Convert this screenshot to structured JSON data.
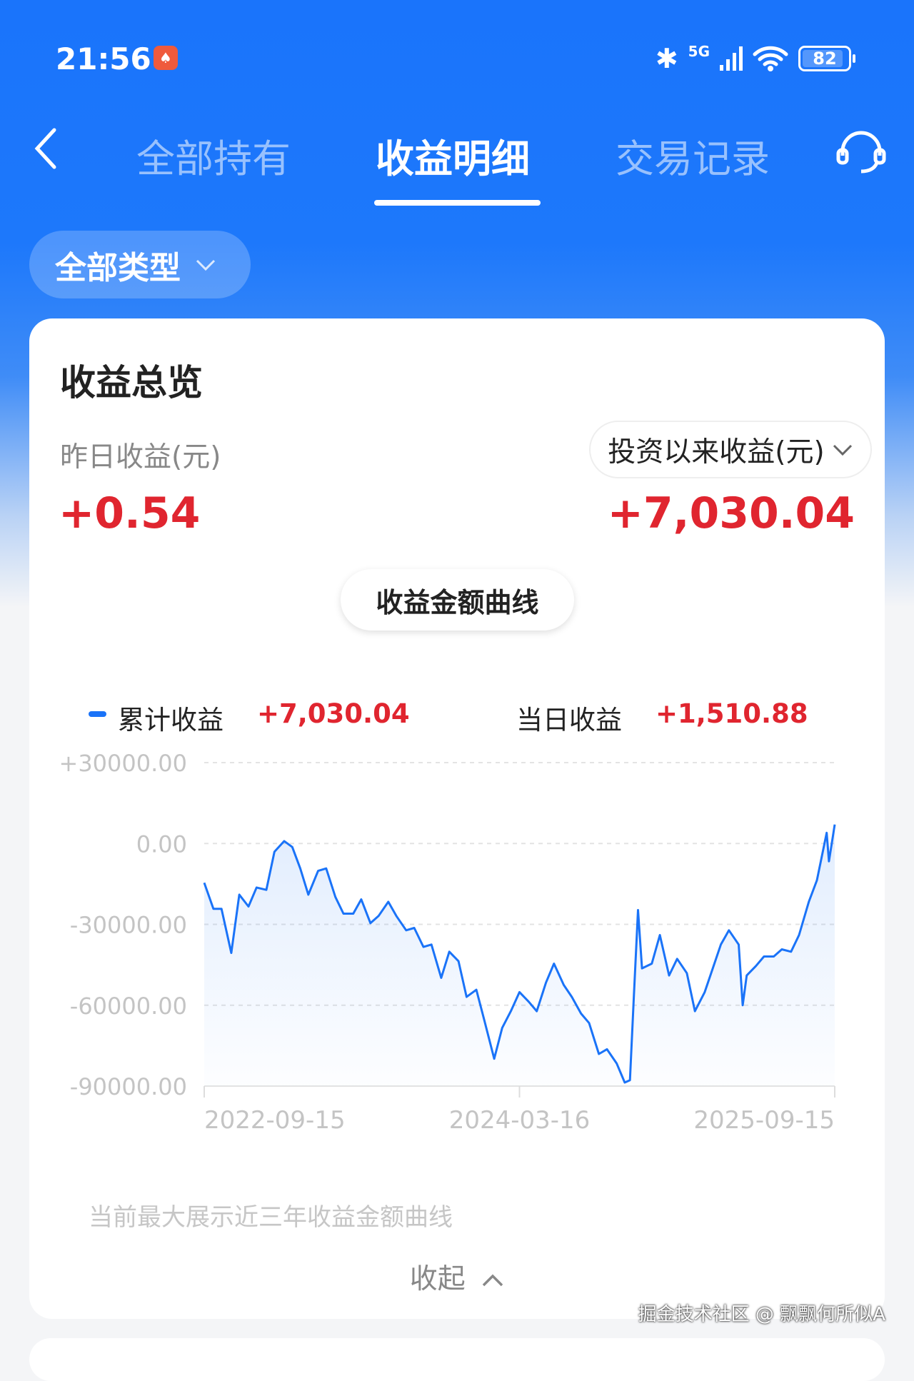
{
  "status_bar": {
    "time": "21:56",
    "network": "5G",
    "battery": "82",
    "icons": [
      "app-notification-icon",
      "bluetooth-icon",
      "signal-icon",
      "wifi-icon",
      "battery-icon"
    ]
  },
  "nav": {
    "back_icon": "chevron-left-icon",
    "tabs": [
      {
        "label": "全部持有",
        "active": false
      },
      {
        "label": "收益明细",
        "active": true
      },
      {
        "label": "交易记录",
        "active": false
      }
    ],
    "service_icon": "headset-icon"
  },
  "filter": {
    "label": "全部类型"
  },
  "overview": {
    "title": "收益总览",
    "yesterday_label": "昨日收益(元)",
    "yesterday_value": "+0.54",
    "total_select": "投资以来收益(元)",
    "total_value": "+7,030.04",
    "curve_button": "收益金额曲线"
  },
  "legend": {
    "cumulative_label": "累计收益",
    "cumulative_value": "+7,030.04",
    "daily_label": "当日收益",
    "daily_value": "+1,510.88"
  },
  "colors": {
    "brand": "#1a74fb",
    "line": "#1a73f8",
    "positive": "#e0252f"
  },
  "chart_data": {
    "type": "area",
    "ylim": [
      -90000,
      30000
    ],
    "yticks": [
      "+30000.00",
      "0.00",
      "-30000.00",
      "-60000.00",
      "-90000.00"
    ],
    "ytick_values": [
      30000,
      0,
      -30000,
      -60000,
      -90000
    ],
    "xticks": [
      "2022-09-15",
      "2024-03-16",
      "2025-09-15"
    ],
    "xlim": [
      "2022-09-15",
      "2025-09-15"
    ],
    "grid": true,
    "series": [
      {
        "points": [
          [
            "2022-09-15",
            -14560
          ],
          [
            "2022-10-01",
            -24260
          ],
          [
            "2022-10-15",
            -24260
          ],
          [
            "2022-11-01",
            -40590
          ],
          [
            "2022-11-15",
            -18970
          ],
          [
            "2022-12-01",
            -23380
          ],
          [
            "2022-12-15",
            -16320
          ],
          [
            "2023-01-01",
            -17210
          ],
          [
            "2023-01-15",
            -3090
          ],
          [
            "2023-02-01",
            880
          ],
          [
            "2023-02-15",
            -1320
          ],
          [
            "2023-03-01",
            -9260
          ],
          [
            "2023-03-15",
            -18970
          ],
          [
            "2023-04-01",
            -10150
          ],
          [
            "2023-04-15",
            -9260
          ],
          [
            "2023-05-01",
            -19850
          ],
          [
            "2023-05-15",
            -26030
          ],
          [
            "2023-06-01",
            -26030
          ],
          [
            "2023-06-15",
            -20740
          ],
          [
            "2023-07-01",
            -29560
          ],
          [
            "2023-07-15",
            -26910
          ],
          [
            "2023-08-01",
            -21620
          ],
          [
            "2023-08-15",
            -26910
          ],
          [
            "2023-09-01",
            -32210
          ],
          [
            "2023-09-15",
            -31320
          ],
          [
            "2023-10-01",
            -38380
          ],
          [
            "2023-10-15",
            -37500
          ],
          [
            "2023-11-01",
            -49850
          ],
          [
            "2023-11-15",
            -40150
          ],
          [
            "2023-12-01",
            -43680
          ],
          [
            "2023-12-15",
            -56910
          ],
          [
            "2024-01-01",
            -54260
          ],
          [
            "2024-01-15",
            -65740
          ],
          [
            "2024-02-01",
            -79850
          ],
          [
            "2024-02-15",
            -68380
          ],
          [
            "2024-03-01",
            -62210
          ],
          [
            "2024-03-16",
            -55150
          ],
          [
            "2024-04-01",
            -58680
          ],
          [
            "2024-04-15",
            -62210
          ],
          [
            "2024-05-01",
            -51620
          ],
          [
            "2024-05-15",
            -44560
          ],
          [
            "2024-06-01",
            -52500
          ],
          [
            "2024-06-15",
            -56910
          ],
          [
            "2024-07-01",
            -63090
          ],
          [
            "2024-07-15",
            -66620
          ],
          [
            "2024-08-01",
            -78090
          ],
          [
            "2024-08-15",
            -76320
          ],
          [
            "2024-09-01",
            -81620
          ],
          [
            "2024-09-15",
            -88680
          ],
          [
            "2024-09-24",
            -87790
          ],
          [
            "2024-10-01",
            -56030
          ],
          [
            "2024-10-08",
            -24710
          ],
          [
            "2024-10-15",
            -46320
          ],
          [
            "2024-11-01",
            -44560
          ],
          [
            "2024-11-15",
            -33970
          ],
          [
            "2024-12-01",
            -48970
          ],
          [
            "2024-12-15",
            -42790
          ],
          [
            "2025-01-01",
            -48090
          ],
          [
            "2025-01-15",
            -62210
          ],
          [
            "2025-02-01",
            -55150
          ],
          [
            "2025-02-15",
            -46320
          ],
          [
            "2025-03-01",
            -37500
          ],
          [
            "2025-03-15",
            -32210
          ],
          [
            "2025-04-01",
            -37500
          ],
          [
            "2025-04-08",
            -60000
          ],
          [
            "2025-04-15",
            -48970
          ],
          [
            "2025-05-01",
            -45440
          ],
          [
            "2025-05-15",
            -41910
          ],
          [
            "2025-06-01",
            -41910
          ],
          [
            "2025-06-15",
            -39260
          ],
          [
            "2025-07-01",
            -40150
          ],
          [
            "2025-07-15",
            -33970
          ],
          [
            "2025-08-01",
            -21620
          ],
          [
            "2025-08-15",
            -13680
          ],
          [
            "2025-09-01",
            3970
          ],
          [
            "2025-09-05",
            -6620
          ],
          [
            "2025-09-15",
            7030.04
          ]
        ]
      }
    ]
  },
  "note": "当前最大展示近三年收益金额曲线",
  "collapse": {
    "label": "收起",
    "icon": "chevron-up-icon"
  },
  "watermark": "掘金技术社区 @ 飘飘何所似A"
}
